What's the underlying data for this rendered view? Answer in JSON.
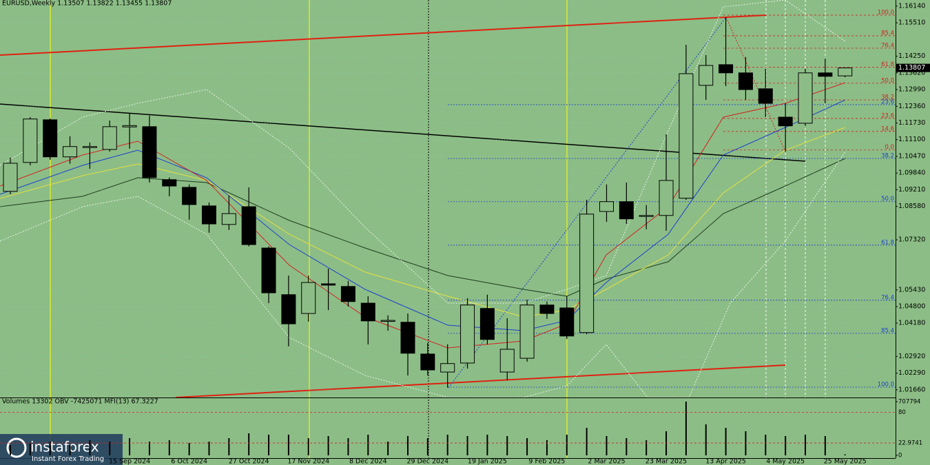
{
  "chart_data": {
    "type": "candlestick",
    "title": "EURUSD,Weekly  1.13507 1.13822 1.13455 1.13807",
    "categories": [
      null,
      null,
      null,
      null,
      null,
      null,
      "15 Sep 2024",
      null,
      null,
      "6 Oct 2024",
      null,
      null,
      "27 Oct 2024",
      null,
      null,
      "17 Nov 2024",
      null,
      null,
      "8 Dec 2024",
      null,
      null,
      "29 Dec 2024",
      null,
      null,
      "19 Jan 2025",
      null,
      null,
      "9 Feb 2025",
      null,
      null,
      "2 Mar 2025",
      null,
      null,
      "23 Mar 2025",
      null,
      null,
      "13 Apr 2025",
      null,
      null,
      "4 May 2025",
      null,
      null,
      "25 May 2025"
    ],
    "open": [
      1.0915,
      1.1024,
      1.1185,
      1.1045,
      1.1081,
      1.1073,
      1.1158,
      1.1159,
      1.0959,
      1.093,
      1.086,
      1.079,
      1.0857,
      1.0701,
      1.0525,
      1.0454,
      1.0566,
      1.0556,
      1.0493,
      1.0426,
      1.0421,
      1.0301,
      1.0233,
      1.0267,
      1.0473,
      1.0233,
      1.0285,
      1.0486,
      1.0475,
      1.0382,
      1.0839,
      1.0876,
      1.0821,
      1.0824,
      1.0889,
      1.1315,
      1.1393,
      1.1362,
      1.1302,
      1.1195,
      1.1172,
      1.1362,
      1.13507
    ],
    "high": [
      1.1042,
      1.1195,
      1.119,
      1.1123,
      1.1099,
      1.1182,
      1.1208,
      1.1201,
      1.0967,
      1.0941,
      1.0873,
      1.0899,
      1.093,
      1.0707,
      1.0597,
      1.0597,
      1.0623,
      1.0577,
      1.0519,
      1.0447,
      1.0454,
      1.0343,
      1.0338,
      1.0512,
      1.0525,
      1.0436,
      1.0506,
      1.0499,
      1.0519,
      1.0883,
      1.0941,
      1.0948,
      1.0863,
      1.113,
      1.1468,
      1.1429,
      1.1572,
      1.1422,
      1.1377,
      1.1247,
      1.1377,
      1.1416,
      1.13822
    ],
    "low": [
      1.0904,
      1.1013,
      1.1034,
      1.1019,
      1.1,
      1.1065,
      1.1076,
      1.0948,
      1.0896,
      1.0808,
      1.0759,
      1.0769,
      1.0707,
      1.0493,
      1.033,
      1.0423,
      1.0467,
      1.048,
      1.0337,
      1.0389,
      1.022,
      1.022,
      1.0174,
      1.0246,
      1.0337,
      1.0202,
      1.0272,
      1.0434,
      1.0358,
      1.0376,
      1.08,
      1.0792,
      1.0772,
      1.0766,
      1.0883,
      1.126,
      1.1312,
      1.126,
      1.1195,
      1.1065,
      1.1162,
      1.1247,
      1.13455
    ],
    "close": [
      1.1021,
      1.1188,
      1.1045,
      1.1084,
      1.1084,
      1.1159,
      1.1163,
      1.0967,
      1.0935,
      1.0865,
      1.0792,
      1.0831,
      1.0714,
      1.0532,
      1.0415,
      1.0571,
      1.0561,
      1.0499,
      1.0426,
      1.0428,
      1.0304,
      1.0241,
      1.0265,
      1.0486,
      1.0356,
      1.0319,
      1.0486,
      1.0454,
      1.0369,
      1.0829,
      1.0876,
      1.0811,
      1.0824,
      1.0956,
      1.1359,
      1.139,
      1.1362,
      1.1299,
      1.1247,
      1.1162,
      1.1362,
      1.1349,
      1.13807
    ],
    "up_color": "#8cbd86",
    "down_color": "#000000",
    "ylim": [
      1.0137,
      1.1637
    ],
    "yticks": [
      {
        "value": 1.1614,
        "label": "1.16140"
      },
      {
        "value": 1.1551,
        "label": "1.15510"
      },
      {
        "value": 1.1425,
        "label": "1.14250"
      },
      {
        "value": 1.1362,
        "label": "1.13620"
      },
      {
        "value": 1.1299,
        "label": "1.12990"
      },
      {
        "value": 1.1236,
        "label": "1.12360"
      },
      {
        "value": 1.1173,
        "label": "1.11730"
      },
      {
        "value": 1.111,
        "label": "1.11100"
      },
      {
        "value": 1.1047,
        "label": "1.10470"
      },
      {
        "value": 1.0984,
        "label": "1.09840"
      },
      {
        "value": 1.0921,
        "label": "1.09210"
      },
      {
        "value": 1.0858,
        "label": "1.08580"
      },
      {
        "value": 1.0732,
        "label": "1.07320"
      },
      {
        "value": 1.0543,
        "label": "1.05430"
      },
      {
        "value": 1.048,
        "label": "1.04800"
      },
      {
        "value": 1.0418,
        "label": "1.04180"
      },
      {
        "value": 1.0292,
        "label": "1.02920"
      },
      {
        "value": 1.0229,
        "label": "1.02290"
      },
      {
        "value": 1.0166,
        "label": "1.01660"
      }
    ],
    "grid": true,
    "fib_red": {
      "color": "#d42020",
      "levels": [
        {
          "value": 1.158,
          "label": "100.0"
        },
        {
          "value": 1.1502,
          "label": "85.4"
        },
        {
          "value": 1.1455,
          "label": "76.4"
        },
        {
          "value": 1.1383,
          "label": "61.8"
        },
        {
          "value": 1.1323,
          "label": "50.0"
        },
        {
          "value": 1.126,
          "label": "38.2"
        },
        {
          "value": 1.119,
          "label": "23.6"
        },
        {
          "value": 1.1141,
          "label": "14.6"
        },
        {
          "value": 1.1071,
          "label": "0.0"
        }
      ]
    },
    "fib_blue": {
      "color": "#1c3fd0",
      "levels": [
        {
          "value": 1.1242,
          "label": "23.6"
        },
        {
          "value": 1.1039,
          "label": "38.2"
        },
        {
          "value": 1.0876,
          "label": "50.0"
        },
        {
          "value": 1.0712,
          "label": "61.8"
        },
        {
          "value": 1.0504,
          "label": "76.4"
        },
        {
          "value": 1.0379,
          "label": "85.4"
        },
        {
          "value": 1.0176,
          "label": "100.0"
        }
      ]
    },
    "indicator_title": "Volumes 13302 OBV -7425071 MFI(13) 67.3227",
    "volume": [
      136110,
      163332,
      181480,
      136110,
      199628,
      181480,
      226850,
      181480,
      199628,
      163332,
      181480,
      226850,
      290368,
      272220,
      272220,
      226850,
      254072,
      226850,
      272220,
      181480,
      254072,
      226850,
      272220,
      254072,
      272220,
      254072,
      226850,
      199628,
      272220,
      362960,
      254072,
      226850,
      199628,
      317590,
      707794,
      408330,
      362960,
      317590,
      272220,
      254072,
      272220,
      254072,
      13302
    ],
    "volume_ylim": [
      0,
      707794
    ],
    "volume_yticks": [
      0,
      707794
    ],
    "mfi_ylim": [
      0,
      100
    ],
    "mfi_yticks": [
      80,
      22.9741
    ]
  },
  "logo": {
    "name": "instaforex",
    "tagline": "Instant Forex Trading"
  }
}
